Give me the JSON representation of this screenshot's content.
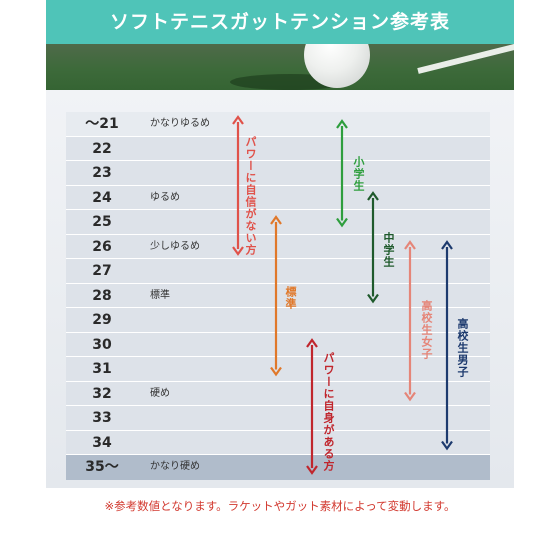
{
  "title": "ソフトテニスガットテンション参考表",
  "rows": [
    {
      "num": "～21",
      "label": "かなりゆるめ"
    },
    {
      "num": "22",
      "label": ""
    },
    {
      "num": "23",
      "label": ""
    },
    {
      "num": "24",
      "label": "ゆるめ"
    },
    {
      "num": "25",
      "label": ""
    },
    {
      "num": "26",
      "label": "少しゆるめ"
    },
    {
      "num": "27",
      "label": ""
    },
    {
      "num": "28",
      "label": "標準"
    },
    {
      "num": "29",
      "label": ""
    },
    {
      "num": "30",
      "label": ""
    },
    {
      "num": "31",
      "label": ""
    },
    {
      "num": "32",
      "label": "硬め"
    },
    {
      "num": "33",
      "label": ""
    },
    {
      "num": "34",
      "label": ""
    },
    {
      "num": "35～",
      "label": "かなり硬め"
    }
  ],
  "ranges": {
    "weak_power": {
      "label": "パワーに自信がない方",
      "from": "～21",
      "to": "26",
      "color": "#e0524a"
    },
    "standard": {
      "label": "標準",
      "from": "25",
      "to": "31",
      "color": "#e0782a"
    },
    "strong_power": {
      "label": "パワーに自身がある方",
      "from": "30",
      "to": "35～",
      "color": "#c0262d"
    },
    "elementary": {
      "label": "小学生",
      "from": "～21",
      "to": "25",
      "color": "#2e9e3e"
    },
    "junior_high": {
      "label": "中学生",
      "from": "24",
      "to": "28",
      "color": "#1f5a2c"
    },
    "hs_girls": {
      "label": "高校生女子",
      "from": "26",
      "to": "32",
      "color": "#e58578"
    },
    "hs_boys": {
      "label": "高校生男子",
      "from": "26",
      "to": "34",
      "color": "#1d3a6e"
    }
  },
  "footnote": "※参考数値となります。ラケットやガット素材によって変動します。"
}
